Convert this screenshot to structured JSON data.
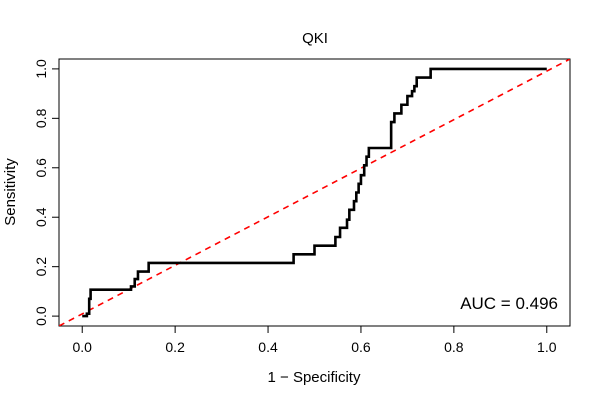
{
  "chart_data": {
    "type": "line",
    "title": "QKI",
    "xlabel": "1 − Specificity",
    "ylabel": "Sensitivity",
    "xlim": [
      -0.05,
      1.05
    ],
    "ylim": [
      -0.04,
      1.04
    ],
    "xticks": [
      0.0,
      0.2,
      0.4,
      0.6,
      0.8,
      1.0
    ],
    "xtick_labels": [
      "0.0",
      "0.2",
      "0.4",
      "0.6",
      "0.8",
      "1.0"
    ],
    "yticks": [
      0.0,
      0.2,
      0.4,
      0.6,
      0.8,
      1.0
    ],
    "ytick_labels": [
      "0.0",
      "0.2",
      "0.4",
      "0.6",
      "0.8",
      "1.0"
    ],
    "grid": false,
    "annotation": "AUC = 0.496",
    "series": [
      {
        "name": "ROC curve",
        "color": "#000000",
        "style": "solid",
        "x": [
          0,
          0.01,
          0.01,
          0.015,
          0.015,
          0.018,
          0.018,
          0.105,
          0.105,
          0.113,
          0.113,
          0.12,
          0.12,
          0.143,
          0.143,
          0.455,
          0.455,
          0.5,
          0.5,
          0.545,
          0.545,
          0.555,
          0.555,
          0.57,
          0.57,
          0.575,
          0.575,
          0.585,
          0.585,
          0.59,
          0.59,
          0.595,
          0.595,
          0.6,
          0.6,
          0.607,
          0.607,
          0.612,
          0.612,
          0.617,
          0.617,
          0.665,
          0.665,
          0.672,
          0.672,
          0.687,
          0.687,
          0.7,
          0.7,
          0.71,
          0.71,
          0.715,
          0.715,
          0.72,
          0.72,
          0.75,
          0.75,
          0.795,
          0.795,
          0.85,
          1.0
        ],
        "y": [
          0,
          0,
          0.01,
          0.01,
          0.07,
          0.07,
          0.107,
          0.107,
          0.12,
          0.12,
          0.15,
          0.15,
          0.18,
          0.18,
          0.215,
          0.215,
          0.25,
          0.25,
          0.285,
          0.285,
          0.32,
          0.32,
          0.357,
          0.357,
          0.39,
          0.39,
          0.43,
          0.43,
          0.465,
          0.465,
          0.5,
          0.5,
          0.535,
          0.535,
          0.57,
          0.57,
          0.61,
          0.61,
          0.645,
          0.645,
          0.68,
          0.68,
          0.785,
          0.785,
          0.82,
          0.82,
          0.855,
          0.855,
          0.89,
          0.89,
          0.91,
          0.91,
          0.93,
          0.93,
          0.965,
          0.965,
          1.0,
          1.0,
          1.0,
          1.0,
          1.0
        ]
      },
      {
        "name": "reference diagonal",
        "color": "#ff0000",
        "style": "dashed",
        "x": [
          -0.05,
          1.05
        ],
        "y": [
          -0.04,
          1.04
        ]
      }
    ]
  }
}
